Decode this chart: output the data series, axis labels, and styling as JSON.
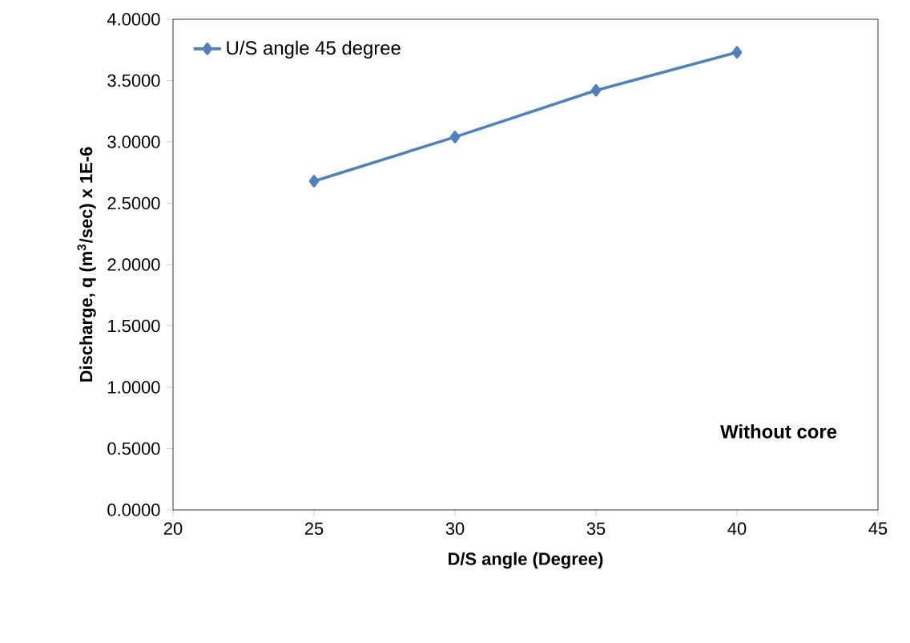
{
  "chart_data": {
    "type": "line",
    "xlabel": "D/S angle (Degree)",
    "ylabel": "Discharge, q (m$^{3}$/sec) x 1E-6",
    "x": [
      25,
      30,
      35,
      40
    ],
    "series": [
      {
        "name": "U/S angle 45 degree",
        "color": "#4f81bd",
        "values": [
          2.68,
          3.04,
          3.42,
          3.73
        ]
      }
    ],
    "xlim": [
      20,
      45
    ],
    "xticks": [
      20,
      25,
      30,
      35,
      40,
      45
    ],
    "ylim": [
      0,
      4
    ],
    "yticks": [
      {
        "value": 0,
        "label": "0.0000"
      },
      {
        "value": 0.5,
        "label": "0.5000"
      },
      {
        "value": 1,
        "label": "1.0000"
      },
      {
        "value": 1.5,
        "label": "1.5000"
      },
      {
        "value": 2,
        "label": "2.0000"
      },
      {
        "value": 2.5,
        "label": "2.5000"
      },
      {
        "value": 3,
        "label": "3.0000"
      },
      {
        "value": 3.5,
        "label": "3.5000"
      },
      {
        "value": 4,
        "label": "4.0000"
      }
    ],
    "annotations": [
      "Without core"
    ],
    "legend": "top left",
    "marker": "diamond",
    "line_style": "solid",
    "grid": false
  }
}
